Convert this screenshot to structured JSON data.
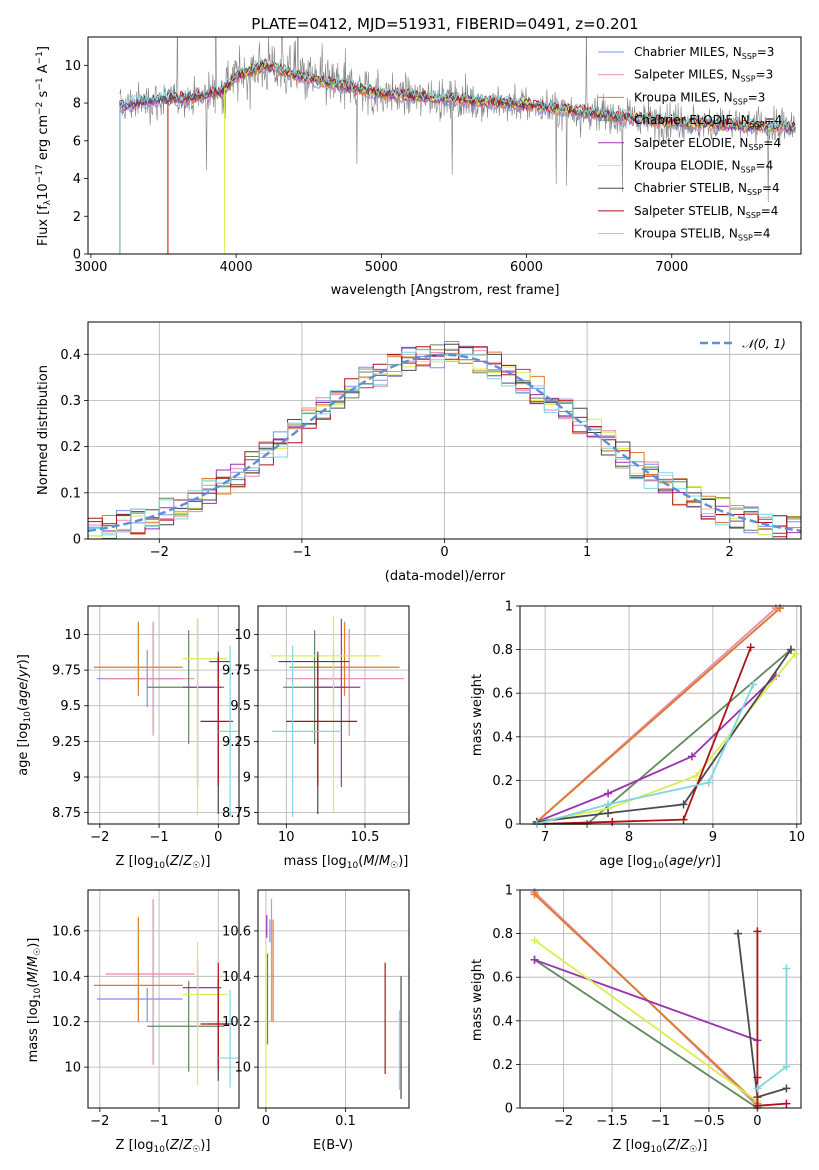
{
  "figure_title": "PLATE=0412, MJD=51931, FIBERID=0491, z=0.201",
  "models": [
    {
      "name": "Chabrier MILES",
      "nssp": "3",
      "color": "#7b8ff0"
    },
    {
      "name": "Salpeter MILES",
      "nssp": "3",
      "color": "#e88aa8"
    },
    {
      "name": "Kroupa MILES",
      "nssp": "3",
      "color": "#e07b2a"
    },
    {
      "name": "Chabrier ELODIE",
      "nssp": "4",
      "color": "#5f8a5c"
    },
    {
      "name": "Salpeter ELODIE",
      "nssp": "4",
      "color": "#9b30b0"
    },
    {
      "name": "Kroupa ELODIE",
      "nssp": "4",
      "color": "#d8ee50"
    },
    {
      "name": "Chabrier STELIB",
      "nssp": "4",
      "color": "#4a4a4a"
    },
    {
      "name": "Salpeter STELIB",
      "nssp": "4",
      "color": "#b0101a"
    },
    {
      "name": "Kroupa STELIB",
      "nssp": "4",
      "color": "#7fd6e0"
    }
  ],
  "chart_data": [
    {
      "id": "spectrum",
      "type": "line",
      "xlabel": "wavelength [Angstrom, rest frame]",
      "ylabel": "Flux [fλ10⁻¹⁷ erg cm⁻² s⁻¹ A⁻¹]",
      "xlim": [
        2980,
        7890
      ],
      "ylim": [
        0,
        11.5
      ],
      "xticks": [
        3000,
        4000,
        5000,
        6000,
        7000
      ],
      "yticks": [
        0,
        2,
        4,
        6,
        8,
        10
      ],
      "grid": false,
      "legend": "right",
      "data_color": "#808080",
      "model_start_wavelengths": [
        3200,
        3200,
        3530,
        3200,
        3200,
        3920,
        3200,
        3530,
        3200
      ],
      "continuum": [
        [
          3200,
          7.8
        ],
        [
          3300,
          8.0
        ],
        [
          3500,
          8.2
        ],
        [
          3700,
          8.3
        ],
        [
          3900,
          8.6
        ],
        [
          4000,
          9.4
        ],
        [
          4200,
          10.0
        ],
        [
          4500,
          9.3
        ],
        [
          5000,
          8.5
        ],
        [
          5500,
          8.2
        ],
        [
          6000,
          7.9
        ],
        [
          6500,
          7.4
        ],
        [
          7000,
          7.0
        ],
        [
          7500,
          6.8
        ],
        [
          7850,
          6.7
        ]
      ]
    },
    {
      "id": "residuals",
      "type": "histogram",
      "xlabel": "(data-model)/error",
      "ylabel": "Normed distribution",
      "xlim": [
        -2.5,
        2.5
      ],
      "ylim": [
        0,
        0.47
      ],
      "xticks": [
        -2,
        -1,
        0,
        1,
        2
      ],
      "yticks": [
        0.0,
        0.1,
        0.2,
        0.3,
        0.4
      ],
      "grid": true,
      "bin_width": 0.1,
      "reference_label": "𝒩(0, 1)",
      "reference_color": "#5b8fd6",
      "legend": "top-right"
    },
    {
      "id": "z-age",
      "type": "errorbar",
      "xlabel": "Z [log10(Z/Z☉)]",
      "ylabel": "age  [log10(age/yr)]",
      "xlim": [
        -2.2,
        0.35
      ],
      "ylim": [
        8.67,
        10.2
      ],
      "xticks": [
        -2,
        -1,
        0
      ],
      "yticks": [
        8.75,
        9.0,
        9.25,
        9.5,
        9.75,
        10.0
      ],
      "grid": true,
      "points": [
        {
          "model": 0,
          "x": -1.2,
          "y": 9.69,
          "xerr": [
            0.85,
            0.6
          ],
          "yerr": [
            0.2,
            0.2
          ]
        },
        {
          "model": 1,
          "x": -1.1,
          "y": 9.69,
          "xerr": [
            0.8,
            0.7
          ],
          "yerr": [
            0.4,
            0.4
          ]
        },
        {
          "model": 2,
          "x": -1.35,
          "y": 9.77,
          "xerr": [
            0.75,
            0.75
          ],
          "yerr": [
            0.2,
            0.32
          ]
        },
        {
          "model": 3,
          "x": -0.5,
          "y": 9.63,
          "xerr": [
            0.7,
            0.6
          ],
          "yerr": [
            0.4,
            0.4
          ]
        },
        {
          "model": 4,
          "x": -0.35,
          "y": 9.63,
          "xerr": [
            0.25,
            0.4
          ],
          "yerr": [
            0.7,
            0.48
          ]
        },
        {
          "model": 5,
          "x": -0.35,
          "y": 9.83,
          "xerr": [
            0.25,
            0.5
          ],
          "yerr": [
            1.1,
            0.28
          ]
        },
        {
          "model": 6,
          "x": 0.0,
          "y": 9.81,
          "xerr": [
            0.15,
            0.2
          ],
          "yerr": [
            1.07,
            0.07
          ]
        },
        {
          "model": 7,
          "x": 0.0,
          "y": 9.39,
          "xerr": [
            0.3,
            0.25
          ],
          "yerr": [
            0.45,
            0.45
          ]
        },
        {
          "model": 8,
          "x": 0.2,
          "y": 9.32,
          "xerr": [
            0.2,
            0.15
          ],
          "yerr": [
            0.6,
            0.6
          ]
        }
      ]
    },
    {
      "id": "mass-age",
      "type": "errorbar",
      "xlabel": "mass [log10(M/M☉)]",
      "ylabel": "",
      "xlim": [
        9.82,
        10.78
      ],
      "ylim": [
        8.67,
        10.2
      ],
      "xticks": [
        10.0,
        10.5
      ],
      "yticks": [
        8.75,
        9.0,
        9.25,
        9.5,
        9.75,
        10.0
      ],
      "grid": true,
      "points": [
        {
          "model": 0,
          "x": 10.3,
          "y": 9.69,
          "xerr": [
            0.1,
            0.05
          ],
          "yerr": [
            0.2,
            0.2
          ]
        },
        {
          "model": 1,
          "x": 10.4,
          "y": 9.69,
          "xerr": [
            0.4,
            0.35
          ],
          "yerr": [
            0.4,
            0.35
          ]
        },
        {
          "model": 2,
          "x": 10.37,
          "y": 9.77,
          "xerr": [
            0.35,
            0.35
          ],
          "yerr": [
            0.2,
            0.32
          ]
        },
        {
          "model": 3,
          "x": 10.18,
          "y": 9.63,
          "xerr": [
            0.2,
            0.2
          ],
          "yerr": [
            0.4,
            0.4
          ]
        },
        {
          "model": 4,
          "x": 10.35,
          "y": 9.63,
          "xerr": [
            0.17,
            0.12
          ],
          "yerr": [
            0.7,
            0.48
          ]
        },
        {
          "model": 5,
          "x": 10.3,
          "y": 9.85,
          "xerr": [
            0.4,
            0.3
          ],
          "yerr": [
            1.1,
            0.28
          ]
        },
        {
          "model": 6,
          "x": 10.2,
          "y": 9.81,
          "xerr": [
            0.25,
            0.2
          ],
          "yerr": [
            1.07,
            0.07
          ]
        },
        {
          "model": 7,
          "x": 10.2,
          "y": 9.39,
          "xerr": [
            0.2,
            0.25
          ],
          "yerr": [
            0.45,
            0.45
          ]
        },
        {
          "model": 8,
          "x": 10.04,
          "y": 9.32,
          "xerr": [
            0.13,
            0.3
          ],
          "yerr": [
            0.6,
            0.6
          ]
        }
      ]
    },
    {
      "id": "age-weight",
      "type": "line",
      "xlabel": "age  [log10(age/yr)]",
      "ylabel": "mass weight",
      "xlim": [
        6.7,
        10.05
      ],
      "ylim": [
        0,
        1.0
      ],
      "xticks": [
        7,
        8,
        9,
        10
      ],
      "yticks": [
        0.0,
        0.2,
        0.4,
        0.6,
        0.8,
        1.0
      ],
      "grid": true,
      "series": [
        {
          "model": 0,
          "x": [
            6.9,
            9.8
          ],
          "y": [
            0.01,
            0.99
          ]
        },
        {
          "model": 1,
          "x": [
            6.9,
            9.75
          ],
          "y": [
            0.01,
            0.99
          ]
        },
        {
          "model": 2,
          "x": [
            6.9,
            9.8
          ],
          "y": [
            0.01,
            0.99
          ]
        },
        {
          "model": 3,
          "x": [
            6.9,
            7.5,
            9.93
          ],
          "y": [
            0.0,
            0.0,
            0.8
          ]
        },
        {
          "model": 4,
          "x": [
            6.9,
            7.75,
            8.75,
            9.75
          ],
          "y": [
            0.01,
            0.14,
            0.31,
            0.68
          ]
        },
        {
          "model": 5,
          "x": [
            6.9,
            7.75,
            8.8,
            9.98
          ],
          "y": [
            0.01,
            0.07,
            0.22,
            0.78
          ]
        },
        {
          "model": 6,
          "x": [
            6.9,
            7.75,
            8.65,
            9.93
          ],
          "y": [
            0.01,
            0.05,
            0.09,
            0.8
          ]
        },
        {
          "model": 7,
          "x": [
            6.9,
            7.8,
            8.65,
            9.45
          ],
          "y": [
            0.0,
            0.01,
            0.02,
            0.81
          ]
        },
        {
          "model": 8,
          "x": [
            6.9,
            7.75,
            8.95,
            9.48
          ],
          "y": [
            0.0,
            0.09,
            0.19,
            0.64
          ]
        }
      ]
    },
    {
      "id": "z-mass",
      "type": "errorbar",
      "xlabel": "Z [log10(Z/Z☉)]",
      "ylabel": "mass [log10(M/M☉)]",
      "xlim": [
        -2.2,
        0.35
      ],
      "ylim": [
        9.82,
        10.78
      ],
      "xticks": [
        -2,
        -1,
        0
      ],
      "yticks": [
        10.0,
        10.2,
        10.4,
        10.6
      ],
      "grid": true,
      "points": [
        {
          "model": 0,
          "x": -1.2,
          "y": 10.3,
          "xerr": [
            0.85,
            0.6
          ],
          "yerr": [
            0.1,
            0.05
          ]
        },
        {
          "model": 1,
          "x": -1.1,
          "y": 10.41,
          "xerr": [
            0.8,
            0.7
          ],
          "yerr": [
            0.4,
            0.33
          ]
        },
        {
          "model": 2,
          "x": -1.35,
          "y": 10.36,
          "xerr": [
            0.75,
            0.75
          ],
          "yerr": [
            0.16,
            0.3
          ]
        },
        {
          "model": 3,
          "x": -0.5,
          "y": 10.18,
          "xerr": [
            0.7,
            0.6
          ],
          "yerr": [
            0.2,
            0.2
          ]
        },
        {
          "model": 4,
          "x": -0.35,
          "y": 10.35,
          "xerr": [
            0.25,
            0.4
          ],
          "yerr": [
            0.17,
            0.12
          ]
        },
        {
          "model": 5,
          "x": -0.35,
          "y": 10.32,
          "xerr": [
            0.25,
            0.5
          ],
          "yerr": [
            0.4,
            0.23
          ]
        },
        {
          "model": 6,
          "x": 0.0,
          "y": 10.19,
          "xerr": [
            0.15,
            0.2
          ],
          "yerr": [
            0.25,
            0.2
          ]
        },
        {
          "model": 7,
          "x": 0.0,
          "y": 10.19,
          "xerr": [
            0.3,
            0.25
          ],
          "yerr": [
            0.2,
            0.27
          ]
        },
        {
          "model": 8,
          "x": 0.2,
          "y": 10.04,
          "xerr": [
            0.2,
            0.15
          ],
          "yerr": [
            0.13,
            0.3
          ]
        }
      ]
    },
    {
      "id": "ebv-mass",
      "type": "errorbar",
      "xlabel": "E(B-V)",
      "ylabel": "",
      "xlim": [
        -0.01,
        0.18
      ],
      "ylim": [
        9.82,
        10.78
      ],
      "xticks": [
        0.0,
        0.1
      ],
      "yticks": [
        10.0,
        10.2,
        10.4,
        10.6
      ],
      "grid": true,
      "points": [
        {
          "model": 0,
          "x": 0.005,
          "y": 10.6,
          "xerr": [
            0,
            0
          ],
          "yerr": [
            0.05,
            0.05
          ]
        },
        {
          "model": 1,
          "x": 0.007,
          "y": 10.6,
          "xerr": [
            0,
            0
          ],
          "yerr": [
            0.4,
            0.14
          ]
        },
        {
          "model": 2,
          "x": 0.009,
          "y": 10.4,
          "xerr": [
            0,
            0
          ],
          "yerr": [
            0.2,
            0.25
          ]
        },
        {
          "model": 3,
          "x": 0.002,
          "y": 10.3,
          "xerr": [
            0,
            0
          ],
          "yerr": [
            0.2,
            0.2
          ]
        },
        {
          "model": 4,
          "x": 0.001,
          "y": 10.62,
          "xerr": [
            0,
            0
          ],
          "yerr": [
            0.05,
            0.05
          ]
        },
        {
          "model": 5,
          "x": 0.0,
          "y": 10.2,
          "xerr": [
            0,
            0
          ],
          "yerr": [
            0.4,
            0.33
          ]
        },
        {
          "model": 6,
          "x": 0.17,
          "y": 10.13,
          "xerr": [
            0,
            0
          ],
          "yerr": [
            0.27,
            0.27
          ]
        },
        {
          "model": 7,
          "x": 0.15,
          "y": 10.21,
          "xerr": [
            0,
            0
          ],
          "yerr": [
            0.24,
            0.25
          ]
        },
        {
          "model": 8,
          "x": 0.168,
          "y": 10.05,
          "xerr": [
            0,
            0
          ],
          "yerr": [
            0.15,
            0.2
          ]
        }
      ]
    },
    {
      "id": "z-weight",
      "type": "line",
      "xlabel": "Z [log10(Z/Z☉)]",
      "ylabel": "mass weight",
      "xlim": [
        -2.45,
        0.45
      ],
      "ylim": [
        0,
        1.0
      ],
      "xticks": [
        -2.0,
        -1.5,
        -1.0,
        -0.5,
        0.0
      ],
      "yticks": [
        0.0,
        0.2,
        0.4,
        0.6,
        0.8,
        1.0
      ],
      "grid": true,
      "series": [
        {
          "model": 0,
          "x": [
            -2.3,
            0.0
          ],
          "y": [
            0.99,
            0.01
          ]
        },
        {
          "model": 1,
          "x": [
            -2.3,
            0.0
          ],
          "y": [
            0.99,
            0.01
          ]
        },
        {
          "model": 2,
          "x": [
            -2.3,
            0.0
          ],
          "y": [
            0.98,
            0.02
          ]
        },
        {
          "model": 3,
          "x": [
            -2.3,
            0.0
          ],
          "y": [
            0.68,
            0.0
          ]
        },
        {
          "model": 4,
          "x": [
            -2.3,
            0.0
          ],
          "y": [
            0.68,
            0.31
          ]
        },
        {
          "model": 5,
          "x": [
            -2.3,
            0.0
          ],
          "y": [
            0.77,
            0.03
          ]
        },
        {
          "model": 6,
          "x": [
            -0.2,
            0.0,
            0.3
          ],
          "y": [
            0.8,
            0.05,
            0.09
          ]
        },
        {
          "model": 7,
          "x": [
            0.0,
            0.0,
            0.0,
            0.3
          ],
          "y": [
            0.81,
            0.14,
            0.01,
            0.02
          ]
        },
        {
          "model": 8,
          "x": [
            0.0,
            0.3,
            0.3
          ],
          "y": [
            0.09,
            0.19,
            0.64
          ]
        }
      ]
    }
  ]
}
